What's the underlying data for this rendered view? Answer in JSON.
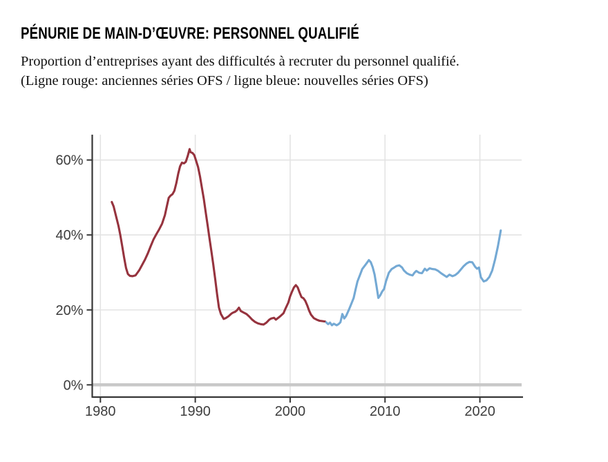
{
  "header": {
    "title": "PÉNURIE DE MAIN-D’ŒUVRE: PERSONNEL QUALIFIÉ",
    "subtitle_line1": "Proportion d’entreprises ayant des difficultés à recruter du personnel qualifié.",
    "subtitle_line2": "(Ligne rouge: anciennes séries OFS / ligne bleue: nouvelles séries OFS)"
  },
  "colors": {
    "old_series_red": "#96333e",
    "new_series_blue": "#74a9d4",
    "gridline": "#e3e3e3",
    "zero_band": "#c8c8c8",
    "axis": "#363636",
    "tick_text": "#3d3d3d",
    "background": "#ffffff"
  },
  "chart_data": {
    "type": "line",
    "title": "Pénurie de main-d’œuvre: personnel qualifié",
    "xlabel": "",
    "ylabel": "",
    "grid": true,
    "legend_position": "none",
    "x_axis": {
      "tick_values": [
        1980,
        1990,
        2000,
        2010,
        2020
      ],
      "tick_labels": [
        "1980",
        "1990",
        "2000",
        "2010",
        "2020"
      ],
      "range": [
        1979.1,
        2024.4
      ]
    },
    "y_axis": {
      "tick_values": [
        0,
        20,
        40,
        60
      ],
      "tick_labels": [
        "0%",
        "20%",
        "40%",
        "60%"
      ],
      "range": [
        -3.3,
        66.8
      ],
      "unit": "%"
    },
    "series": [
      {
        "name": "anciennes séries OFS",
        "color_key": "old_series_red",
        "points": [
          [
            1981.2,
            48.8
          ],
          [
            1981.4,
            47.6
          ],
          [
            1981.6,
            45.5
          ],
          [
            1981.9,
            42.5
          ],
          [
            1982.1,
            40.0
          ],
          [
            1982.3,
            37.0
          ],
          [
            1982.5,
            34.0
          ],
          [
            1982.7,
            31.2
          ],
          [
            1982.9,
            29.6
          ],
          [
            1983.1,
            29.1
          ],
          [
            1983.4,
            29.0
          ],
          [
            1983.7,
            29.2
          ],
          [
            1983.9,
            29.9
          ],
          [
            1984.1,
            30.6
          ],
          [
            1984.4,
            32.0
          ],
          [
            1984.7,
            33.4
          ],
          [
            1985.0,
            35.1
          ],
          [
            1985.3,
            37.0
          ],
          [
            1985.6,
            38.8
          ],
          [
            1985.9,
            40.2
          ],
          [
            1986.2,
            41.5
          ],
          [
            1986.5,
            43.0
          ],
          [
            1986.8,
            45.3
          ],
          [
            1987.0,
            47.6
          ],
          [
            1987.2,
            49.9
          ],
          [
            1987.4,
            50.5
          ],
          [
            1987.6,
            50.9
          ],
          [
            1987.8,
            51.8
          ],
          [
            1988.0,
            53.8
          ],
          [
            1988.2,
            56.3
          ],
          [
            1988.4,
            58.3
          ],
          [
            1988.6,
            59.3
          ],
          [
            1988.8,
            59.1
          ],
          [
            1989.0,
            59.5
          ],
          [
            1989.2,
            61.0
          ],
          [
            1989.4,
            62.9
          ],
          [
            1989.5,
            62.1
          ],
          [
            1989.7,
            61.9
          ],
          [
            1989.9,
            61.3
          ],
          [
            1990.1,
            59.7
          ],
          [
            1990.3,
            58.1
          ],
          [
            1990.5,
            55.6
          ],
          [
            1990.7,
            52.6
          ],
          [
            1990.9,
            49.6
          ],
          [
            1991.1,
            46.1
          ],
          [
            1991.3,
            42.6
          ],
          [
            1991.5,
            39.1
          ],
          [
            1991.7,
            35.6
          ],
          [
            1991.9,
            32.1
          ],
          [
            1992.1,
            28.2
          ],
          [
            1992.3,
            24.2
          ],
          [
            1992.5,
            20.6
          ],
          [
            1992.7,
            18.9
          ],
          [
            1993.0,
            17.6
          ],
          [
            1993.2,
            17.8
          ],
          [
            1993.5,
            18.3
          ],
          [
            1993.8,
            19.0
          ],
          [
            1994.0,
            19.3
          ],
          [
            1994.2,
            19.5
          ],
          [
            1994.4,
            19.9
          ],
          [
            1994.6,
            20.6
          ],
          [
            1994.8,
            19.7
          ],
          [
            1995.1,
            19.3
          ],
          [
            1995.4,
            18.9
          ],
          [
            1995.7,
            18.2
          ],
          [
            1996.0,
            17.4
          ],
          [
            1996.3,
            16.8
          ],
          [
            1996.6,
            16.4
          ],
          [
            1996.9,
            16.2
          ],
          [
            1997.2,
            16.1
          ],
          [
            1997.5,
            16.6
          ],
          [
            1997.8,
            17.4
          ],
          [
            1998.0,
            17.7
          ],
          [
            1998.3,
            17.9
          ],
          [
            1998.5,
            17.4
          ],
          [
            1998.8,
            18.0
          ],
          [
            1999.0,
            18.4
          ],
          [
            1999.3,
            19.1
          ],
          [
            1999.5,
            20.3
          ],
          [
            1999.8,
            21.9
          ],
          [
            2000.0,
            23.6
          ],
          [
            2000.2,
            24.9
          ],
          [
            2000.4,
            26.0
          ],
          [
            2000.6,
            26.6
          ],
          [
            2000.8,
            26.0
          ],
          [
            2001.0,
            24.6
          ],
          [
            2001.2,
            23.4
          ],
          [
            2001.4,
            23.1
          ],
          [
            2001.6,
            22.4
          ],
          [
            2001.8,
            21.2
          ],
          [
            2002.0,
            19.8
          ],
          [
            2002.2,
            18.7
          ],
          [
            2002.5,
            17.8
          ],
          [
            2002.8,
            17.4
          ],
          [
            2003.1,
            17.1
          ],
          [
            2003.4,
            17.0
          ],
          [
            2003.7,
            16.9
          ]
        ]
      },
      {
        "name": "nouvelles séries OFS",
        "color_key": "new_series_blue",
        "points": [
          [
            2003.8,
            16.7
          ],
          [
            2004.0,
            16.2
          ],
          [
            2004.2,
            16.6
          ],
          [
            2004.4,
            15.9
          ],
          [
            2004.6,
            16.3
          ],
          [
            2004.9,
            15.9
          ],
          [
            2005.1,
            16.2
          ],
          [
            2005.3,
            16.7
          ],
          [
            2005.5,
            18.9
          ],
          [
            2005.7,
            17.7
          ],
          [
            2005.9,
            18.4
          ],
          [
            2006.2,
            20.1
          ],
          [
            2006.4,
            21.3
          ],
          [
            2006.7,
            23.2
          ],
          [
            2006.9,
            25.5
          ],
          [
            2007.1,
            27.6
          ],
          [
            2007.4,
            29.6
          ],
          [
            2007.6,
            30.9
          ],
          [
            2007.9,
            31.9
          ],
          [
            2008.1,
            32.6
          ],
          [
            2008.3,
            33.3
          ],
          [
            2008.5,
            32.7
          ],
          [
            2008.7,
            31.4
          ],
          [
            2008.9,
            29.4
          ],
          [
            2009.1,
            26.4
          ],
          [
            2009.3,
            23.2
          ],
          [
            2009.5,
            23.9
          ],
          [
            2009.7,
            24.9
          ],
          [
            2009.9,
            25.6
          ],
          [
            2010.1,
            27.6
          ],
          [
            2010.4,
            29.9
          ],
          [
            2010.7,
            30.9
          ],
          [
            2010.9,
            31.2
          ],
          [
            2011.2,
            31.7
          ],
          [
            2011.5,
            31.9
          ],
          [
            2011.8,
            31.3
          ],
          [
            2012.0,
            30.5
          ],
          [
            2012.3,
            29.8
          ],
          [
            2012.6,
            29.4
          ],
          [
            2012.9,
            29.2
          ],
          [
            2013.1,
            29.9
          ],
          [
            2013.3,
            30.4
          ],
          [
            2013.6,
            29.9
          ],
          [
            2013.9,
            29.8
          ],
          [
            2014.2,
            31.0
          ],
          [
            2014.4,
            30.5
          ],
          [
            2014.7,
            31.1
          ],
          [
            2015.0,
            30.9
          ],
          [
            2015.3,
            30.8
          ],
          [
            2015.6,
            30.4
          ],
          [
            2015.9,
            29.8
          ],
          [
            2016.2,
            29.3
          ],
          [
            2016.5,
            28.8
          ],
          [
            2016.8,
            29.4
          ],
          [
            2017.1,
            29.0
          ],
          [
            2017.4,
            29.3
          ],
          [
            2017.7,
            29.9
          ],
          [
            2018.0,
            30.8
          ],
          [
            2018.3,
            31.7
          ],
          [
            2018.6,
            32.4
          ],
          [
            2018.9,
            32.8
          ],
          [
            2019.2,
            32.7
          ],
          [
            2019.5,
            31.5
          ],
          [
            2019.7,
            31.0
          ],
          [
            2019.9,
            31.3
          ],
          [
            2020.1,
            28.7
          ],
          [
            2020.4,
            27.6
          ],
          [
            2020.7,
            27.9
          ],
          [
            2021.0,
            28.8
          ],
          [
            2021.3,
            30.5
          ],
          [
            2021.6,
            33.5
          ],
          [
            2021.9,
            37.0
          ],
          [
            2022.2,
            41.2
          ]
        ]
      }
    ]
  }
}
